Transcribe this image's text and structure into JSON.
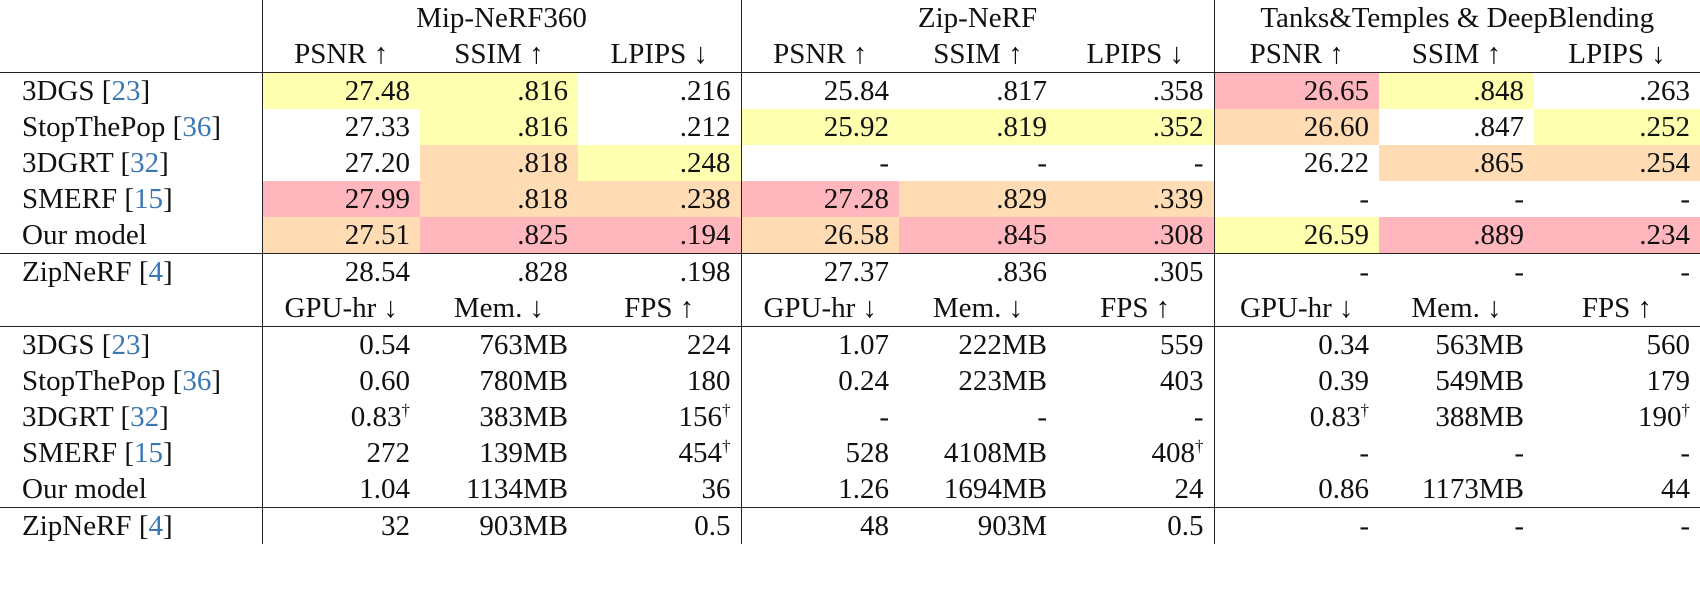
{
  "colors": {
    "red": "#ffb6bd",
    "orange": "#ffdcb4",
    "yellow": "#ffffb0",
    "ref_link": "#3a78b5"
  },
  "groups": [
    "Mip-NeRF360",
    "Zip-NeRF",
    "Tanks&Temples & DeepBlending"
  ],
  "quality_headers": [
    "PSNR ↑",
    "SSIM ↑",
    "LPIPS ↓"
  ],
  "perf_headers": [
    "GPU-hr ↓",
    "Mem. ↓",
    "FPS ↑"
  ],
  "quality_rows": [
    {
      "name": "3DGS",
      "ref": "23",
      "cells": [
        {
          "v": "27.48",
          "c": "yellow"
        },
        {
          "v": ".816",
          "c": "yellow"
        },
        {
          "v": ".216"
        },
        {
          "v": "25.84"
        },
        {
          "v": ".817"
        },
        {
          "v": ".358"
        },
        {
          "v": "26.65",
          "c": "red"
        },
        {
          "v": ".848",
          "c": "yellow"
        },
        {
          "v": ".263"
        }
      ]
    },
    {
      "name": "StopThePop",
      "ref": "36",
      "cells": [
        {
          "v": "27.33"
        },
        {
          "v": ".816",
          "c": "yellow"
        },
        {
          "v": ".212"
        },
        {
          "v": "25.92",
          "c": "yellow"
        },
        {
          "v": ".819",
          "c": "yellow"
        },
        {
          "v": ".352",
          "c": "yellow"
        },
        {
          "v": "26.60",
          "c": "orange"
        },
        {
          "v": ".847"
        },
        {
          "v": ".252",
          "c": "yellow"
        }
      ]
    },
    {
      "name": "3DGRT",
      "ref": "32",
      "cells": [
        {
          "v": "27.20"
        },
        {
          "v": ".818",
          "c": "orange"
        },
        {
          "v": ".248",
          "c": "yellow"
        },
        {
          "v": "-"
        },
        {
          "v": "-"
        },
        {
          "v": "-"
        },
        {
          "v": "26.22"
        },
        {
          "v": ".865",
          "c": "orange"
        },
        {
          "v": ".254",
          "c": "orange"
        }
      ]
    },
    {
      "name": "SMERF",
      "ref": "15",
      "cells": [
        {
          "v": "27.99",
          "c": "red"
        },
        {
          "v": ".818",
          "c": "orange"
        },
        {
          "v": ".238",
          "c": "orange"
        },
        {
          "v": "27.28",
          "c": "red"
        },
        {
          "v": ".829",
          "c": "orange"
        },
        {
          "v": ".339",
          "c": "orange"
        },
        {
          "v": "-"
        },
        {
          "v": "-"
        },
        {
          "v": "-"
        }
      ]
    },
    {
      "name": "Our model",
      "ref": "",
      "cells": [
        {
          "v": "27.51",
          "c": "orange"
        },
        {
          "v": ".825",
          "c": "red"
        },
        {
          "v": ".194",
          "c": "red"
        },
        {
          "v": "26.58",
          "c": "orange"
        },
        {
          "v": ".845",
          "c": "red"
        },
        {
          "v": ".308",
          "c": "red"
        },
        {
          "v": "26.59",
          "c": "yellow"
        },
        {
          "v": ".889",
          "c": "red"
        },
        {
          "v": ".234",
          "c": "red"
        }
      ]
    }
  ],
  "quality_ref_row": {
    "name": "ZipNeRF",
    "ref": "4",
    "cells": [
      {
        "v": "28.54"
      },
      {
        "v": ".828"
      },
      {
        "v": ".198"
      },
      {
        "v": "27.37"
      },
      {
        "v": ".836"
      },
      {
        "v": ".305"
      },
      {
        "v": "-"
      },
      {
        "v": "-"
      },
      {
        "v": "-"
      }
    ]
  },
  "perf_rows": [
    {
      "name": "3DGS",
      "ref": "23",
      "cells": [
        {
          "v": "0.54"
        },
        {
          "v": "763MB"
        },
        {
          "v": "224"
        },
        {
          "v": "1.07"
        },
        {
          "v": "222MB"
        },
        {
          "v": "559"
        },
        {
          "v": "0.34"
        },
        {
          "v": "563MB"
        },
        {
          "v": "560"
        }
      ]
    },
    {
      "name": "StopThePop",
      "ref": "36",
      "cells": [
        {
          "v": "0.60"
        },
        {
          "v": "780MB"
        },
        {
          "v": "180"
        },
        {
          "v": "0.24"
        },
        {
          "v": "223MB"
        },
        {
          "v": "403"
        },
        {
          "v": "0.39"
        },
        {
          "v": "549MB"
        },
        {
          "v": "179"
        }
      ]
    },
    {
      "name": "3DGRT",
      "ref": "32",
      "cells": [
        {
          "v": "0.83",
          "sup": "†"
        },
        {
          "v": "383MB"
        },
        {
          "v": "156",
          "sup": "†"
        },
        {
          "v": "-"
        },
        {
          "v": "-"
        },
        {
          "v": "-"
        },
        {
          "v": "0.83",
          "sup": "†"
        },
        {
          "v": "388MB"
        },
        {
          "v": "190",
          "sup": "†"
        }
      ]
    },
    {
      "name": "SMERF",
      "ref": "15",
      "cells": [
        {
          "v": "272"
        },
        {
          "v": "139MB"
        },
        {
          "v": "454",
          "sup": "†"
        },
        {
          "v": "528"
        },
        {
          "v": "4108MB"
        },
        {
          "v": "408",
          "sup": "†"
        },
        {
          "v": "-"
        },
        {
          "v": "-"
        },
        {
          "v": "-"
        }
      ]
    },
    {
      "name": "Our model",
      "ref": "",
      "cells": [
        {
          "v": "1.04"
        },
        {
          "v": "1134MB"
        },
        {
          "v": "36"
        },
        {
          "v": "1.26"
        },
        {
          "v": "1694MB"
        },
        {
          "v": "24"
        },
        {
          "v": "0.86"
        },
        {
          "v": "1173MB"
        },
        {
          "v": "44"
        }
      ]
    }
  ],
  "perf_ref_row": {
    "name": "ZipNeRF",
    "ref": "4",
    "cells": [
      {
        "v": "32"
      },
      {
        "v": "903MB"
      },
      {
        "v": "0.5"
      },
      {
        "v": "48"
      },
      {
        "v": "903M"
      },
      {
        "v": "0.5"
      },
      {
        "v": "-"
      },
      {
        "v": "-"
      },
      {
        "v": "-"
      }
    ]
  }
}
